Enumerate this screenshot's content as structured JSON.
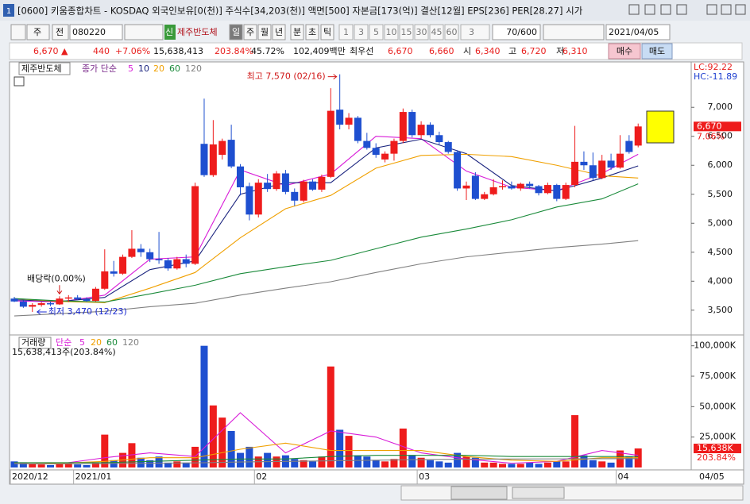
{
  "window": {
    "title": "[0600] 키움종합차트 - KOSDAQ 외국인보유[0(천)] 주식수[34,203(천)] 액면[500] 자본금[173(억)] 결산[12월] EPS[236] PER[28.27] 시가"
  },
  "toolbar": {
    "period": "주",
    "market": "전",
    "code": "080220",
    "badge": "신",
    "name": "제주반도체",
    "intervals": [
      "일",
      "주",
      "월",
      "년",
      "분",
      "초",
      "틱"
    ],
    "minutes": [
      "1",
      "3",
      "5",
      "10",
      "15",
      "30",
      "45",
      "60"
    ],
    "custom": "3",
    "count": "70/600",
    "date": "2021/04/05"
  },
  "quote": {
    "price": "6,670 ▲",
    "change": "440",
    "rate": "+7.06%",
    "volume": "15,638,413",
    "vol_ratio": "203.84%",
    "turnover": "45.72%",
    "amount": "102,409백만",
    "best_label": "최우선",
    "ask": "6,670",
    "bid": "6,660",
    "open_label": "시",
    "open": "6,340",
    "high_label": "고",
    "high": "6,720",
    "low_label": "저",
    "low": "6,310",
    "buy": "매수",
    "sell": "매도"
  },
  "chart_data": {
    "type": "candlestick",
    "name": "제주반도체",
    "ma_label": "종가 단순",
    "open": [
      3700,
      3650,
      3560,
      3590,
      3620,
      3600,
      3700,
      3720,
      3690,
      3660,
      3870,
      4170,
      4130,
      4420,
      4560,
      4500,
      4380,
      4360,
      4220,
      4380,
      4300,
      6370,
      5830,
      6180,
      6440,
      5980,
      5640,
      5150,
      5700,
      5590,
      5860,
      5540,
      5390,
      5720,
      5580,
      5800,
      6960,
      6700,
      6820,
      6420,
      6300,
      6100,
      6200,
      6420,
      6920,
      6520,
      6700,
      6520,
      6400,
      6230,
      5600,
      5820,
      5420,
      5500,
      5620,
      5640,
      5600,
      5680,
      5640,
      5520,
      5660,
      5420,
      5660,
      6060,
      6000,
      5780,
      6080,
      5960,
      6420,
      6340
    ],
    "high": [
      3730,
      3670,
      3620,
      3640,
      3650,
      3740,
      3760,
      3760,
      3720,
      3900,
      4550,
      4350,
      4460,
      4880,
      4640,
      4560,
      4850,
      4400,
      4420,
      4460,
      5700,
      7150,
      6780,
      6460,
      6700,
      6020,
      5700,
      5760,
      5850,
      5900,
      5920,
      5600,
      5750,
      5760,
      5840,
      7330,
      7570,
      6900,
      6850,
      6560,
      6380,
      6240,
      6460,
      6980,
      6960,
      6760,
      6740,
      6580,
      6420,
      6260,
      5720,
      5880,
      5540,
      5760,
      5740,
      5720,
      5700,
      5720,
      5660,
      5700,
      5680,
      5700,
      6680,
      6240,
      6220,
      6180,
      6200,
      6520,
      6520,
      6720
    ],
    "low": [
      3640,
      3540,
      3470,
      3560,
      3570,
      3590,
      3640,
      3670,
      3640,
      3650,
      3850,
      4080,
      4110,
      4400,
      4420,
      4330,
      4300,
      4180,
      4200,
      4240,
      4280,
      5800,
      5800,
      6100,
      5950,
      5480,
      5050,
      5100,
      5540,
      5560,
      5500,
      5300,
      5360,
      5560,
      5540,
      5780,
      6620,
      6620,
      6380,
      6270,
      6130,
      6050,
      6080,
      6380,
      6480,
      6460,
      6480,
      6360,
      6200,
      5560,
      5400,
      5400,
      5400,
      5480,
      5580,
      5580,
      5560,
      5600,
      5480,
      5500,
      5380,
      5400,
      5620,
      5920,
      5740,
      5760,
      5920,
      5940,
      6200,
      6310
    ],
    "close": [
      3650,
      3560,
      3590,
      3620,
      3600,
      3700,
      3720,
      3690,
      3660,
      3870,
      4170,
      4130,
      4420,
      4560,
      4500,
      4380,
      4360,
      4220,
      4380,
      4300,
      5640,
      5830,
      6360,
      6420,
      5980,
      5620,
      5150,
      5700,
      5590,
      5860,
      5540,
      5390,
      5720,
      5580,
      5800,
      6940,
      6700,
      6820,
      6420,
      6300,
      6180,
      6200,
      6420,
      6920,
      6520,
      6700,
      6520,
      6400,
      6230,
      5600,
      5650,
      5420,
      5500,
      5620,
      5640,
      5600,
      5680,
      5640,
      5520,
      5660,
      5420,
      5660,
      6060,
      6000,
      5780,
      6080,
      5960,
      6200,
      6230,
      6670
    ],
    "ma_x": [
      0,
      5,
      10,
      15,
      20,
      25,
      30,
      35,
      40,
      45,
      50,
      55,
      60,
      65,
      69
    ],
    "ma_series": [
      {
        "name": "5",
        "color": "#d81bd8",
        "values": [
          3660,
          3640,
          3760,
          4380,
          4420,
          5920,
          5650,
          5850,
          6500,
          6460,
          5900,
          5620,
          5560,
          5860,
          6190
        ]
      },
      {
        "name": "10",
        "color": "#1a237e",
        "values": [
          3680,
          3650,
          3720,
          4200,
          4350,
          5500,
          5700,
          5700,
          6300,
          6450,
          6200,
          5650,
          5560,
          5780,
          5990
        ]
      },
      {
        "name": "20",
        "color": "#f0a000",
        "values": [
          3700,
          3650,
          3630,
          3880,
          4150,
          4750,
          5250,
          5480,
          5950,
          6170,
          6190,
          6150,
          6000,
          5820,
          5780
        ]
      },
      {
        "name": "60",
        "color": "#1a8a3a",
        "values": [
          3700,
          3660,
          3640,
          3780,
          3930,
          4130,
          4250,
          4360,
          4560,
          4760,
          4900,
          5060,
          5280,
          5420,
          5680
        ]
      },
      {
        "name": "120",
        "color": "#808080",
        "values": [
          3400,
          3440,
          3480,
          3560,
          3620,
          3760,
          3880,
          3990,
          4150,
          4300,
          4420,
          4500,
          4580,
          4640,
          4700
        ]
      }
    ],
    "ylim": [
      3100,
      7770
    ],
    "yticks": [
      {
        "value": 3500,
        "label": "3,500"
      },
      {
        "value": 4000,
        "label": "4,000"
      },
      {
        "value": 4500,
        "label": "4,500"
      },
      {
        "value": 5000,
        "label": "5,000"
      },
      {
        "value": 5500,
        "label": "5,500"
      },
      {
        "value": 6000,
        "label": "6,000"
      },
      {
        "value": 6500,
        "label": "6,500"
      },
      {
        "value": 7000,
        "label": "7,000"
      }
    ],
    "lc": "LC:92.22",
    "hc": "HC:-11.89",
    "last_price": {
      "value": 6670,
      "label": "6,670"
    },
    "last_change": "7.06%",
    "annotations": [
      {
        "text": "최고 7,570 (02/16)",
        "x": 36
      },
      {
        "text": "최저 3,470 (12/23)",
        "x": 2
      },
      {
        "text": "배당락(0.00%)",
        "x": 5
      }
    ],
    "xticks": [
      {
        "value": 0,
        "label": "2020/12"
      },
      {
        "value": 7,
        "label": "2021/01"
      },
      {
        "value": 27,
        "label": "02"
      },
      {
        "value": 45,
        "label": "03"
      },
      {
        "value": 67,
        "label": "04"
      }
    ],
    "last_date": "04/05",
    "volume": {
      "name": "거래량",
      "ma_label": "단순",
      "summary": "15,638,413주(203.84%)",
      "values": [
        5000,
        4000,
        3000,
        2500,
        2000,
        3000,
        3500,
        2500,
        2000,
        4000,
        27000,
        6000,
        12000,
        20000,
        8000,
        6000,
        9000,
        4000,
        5000,
        4000,
        17000,
        100000,
        51000,
        41000,
        30000,
        12000,
        17000,
        9000,
        12000,
        9000,
        10000,
        7000,
        6000,
        5000,
        9000,
        83000,
        31000,
        26000,
        10000,
        9000,
        6000,
        5000,
        7000,
        32000,
        10000,
        8000,
        6000,
        5000,
        4000,
        12000,
        9000,
        8000,
        4000,
        4000,
        3000,
        3000,
        3000,
        4000,
        3000,
        4000,
        5000,
        5000,
        43000,
        10000,
        6000,
        5000,
        4000,
        14000,
        9000,
        15638
      ],
      "ylim": [
        0,
        105000
      ],
      "yticks": [
        {
          "value": 25000,
          "label": "25,000K"
        },
        {
          "value": 50000,
          "label": "50,000K"
        },
        {
          "value": 75000,
          "label": "75,000K"
        },
        {
          "value": 100000,
          "label": "100,000K"
        }
      ],
      "last": {
        "value": 15638,
        "label": "15,638K"
      },
      "last_ratio": "203.84%",
      "ma_series": [
        {
          "name": "5",
          "color": "#d81bd8",
          "values": [
            3000,
            3000,
            8000,
            12000,
            9000,
            45000,
            12000,
            30000,
            25000,
            12000,
            7000,
            3500,
            5000,
            14000,
            10000
          ]
        },
        {
          "name": "20",
          "color": "#f0a000",
          "values": [
            4000,
            3500,
            5000,
            8000,
            8000,
            15000,
            20000,
            14000,
            14000,
            14000,
            9000,
            6000,
            5000,
            8000,
            8000
          ]
        },
        {
          "name": "60",
          "color": "#1a8a3a",
          "values": [
            4000,
            4000,
            4000,
            5000,
            6000,
            7000,
            7000,
            9000,
            10000,
            10000,
            10000,
            9000,
            9000,
            9000,
            9000
          ]
        },
        {
          "name": "120",
          "color": "#808080",
          "values": [
            3000,
            3000,
            3200,
            3500,
            3800,
            4500,
            5000,
            5500,
            6000,
            6500,
            6800,
            7000,
            7100,
            7200,
            7300
          ]
        }
      ]
    }
  }
}
